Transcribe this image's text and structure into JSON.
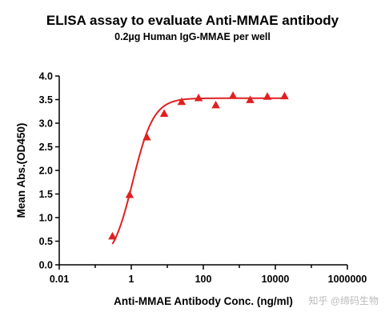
{
  "chart_data": {
    "type": "scatter",
    "title": "ELISA assay to evaluate Anti-MMAE antibody",
    "subtitle": "0.2µg Human IgG-MMAE per well",
    "xlabel": "Anti-MMAE Antibody Conc. (ng/ml)",
    "ylabel": "Mean Abs.(OD450)",
    "x_scale": "log",
    "xlim": [
      0.01,
      1000000
    ],
    "ylim": [
      0,
      4.0
    ],
    "x_ticks": [
      "0.01",
      "1",
      "100",
      "10000",
      "1000000"
    ],
    "y_ticks": [
      "0.0",
      "0.5",
      "1.0",
      "1.5",
      "2.0",
      "2.5",
      "3.0",
      "3.5",
      "4.0"
    ],
    "grid": false,
    "series": [
      {
        "marker": "triangle",
        "color": "#e02020",
        "x": [
          0.3,
          0.9,
          2.7,
          8.2,
          25,
          74,
          222,
          667,
          2000,
          6000,
          18000
        ],
        "y": [
          0.6,
          1.48,
          2.7,
          3.2,
          3.45,
          3.53,
          3.38,
          3.58,
          3.49,
          3.56,
          3.57
        ]
      }
    ],
    "fit": {
      "type": "4PL",
      "color": "#e02020",
      "bottom": 0.0,
      "top": 3.53,
      "ec50": 1.1,
      "hill": 1.5,
      "x_range": [
        0.3,
        18000
      ]
    }
  },
  "watermark": "知乎 @缔码生物"
}
